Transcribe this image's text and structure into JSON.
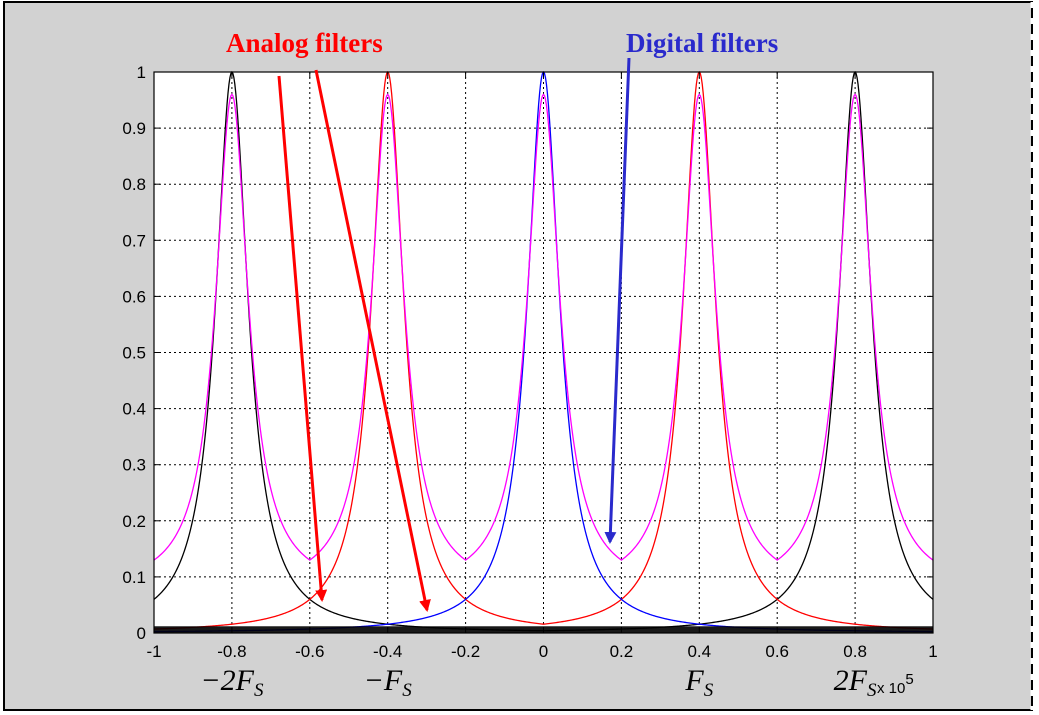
{
  "chart_data": {
    "type": "line",
    "xlim": [
      -1,
      1
    ],
    "ylim": [
      0,
      1
    ],
    "x_ticks": [
      "-1",
      "-0.8",
      "-0.6",
      "-0.4",
      "-0.2",
      "0",
      "0.2",
      "0.4",
      "0.6",
      "0.8",
      "1"
    ],
    "y_ticks": [
      "0",
      "0.1",
      "0.2",
      "0.3",
      "0.4",
      "0.5",
      "0.6",
      "0.7",
      "0.8",
      "0.9",
      "1"
    ],
    "x_exponent": "x 10",
    "x_exponent_power": "5",
    "grid": true,
    "series": [
      {
        "color": "#000000",
        "peak_x": [
          -0.8,
          0.8
        ],
        "peak_value": 1.0,
        "values_at": {
          "x": [
            -0.6,
            -0.4,
            0.0
          ],
          "y": [
            0.06,
            0.018,
            0.008
          ]
        }
      },
      {
        "color": "#ff0000",
        "peak_x": [
          -0.4,
          0.4
        ],
        "peak_value": 1.0,
        "values_at": {
          "x": [
            -0.6,
            -0.2,
            0.0,
            0.2
          ],
          "y": [
            0.06,
            0.06,
            0.018,
            0.06
          ]
        }
      },
      {
        "color": "#0000ff",
        "peak_x": [
          0.0
        ],
        "peak_value": 1.0,
        "values_at": {
          "x": [
            -0.2,
            0.2,
            0.4
          ],
          "y": [
            0.06,
            0.06,
            0.018
          ]
        }
      },
      {
        "color": "#ff00ff",
        "peak_x": [
          -0.8,
          -0.4,
          0.0,
          0.4,
          0.8
        ],
        "peak_value": 0.96,
        "values_at": {
          "x": [
            -0.6,
            -0.2,
            0.2,
            0.6
          ],
          "y": [
            0.13,
            0.13,
            0.13,
            0.13
          ]
        }
      }
    ],
    "annotations": [
      {
        "text": "Analog filters",
        "color": "#ff0000"
      },
      {
        "text": "Digital filters",
        "color": "#2a2acc"
      }
    ],
    "sampling_labels": [
      {
        "text": "−2F",
        "subscript": "S",
        "x": -0.8
      },
      {
        "text": "−F",
        "subscript": "S",
        "x": -0.4
      },
      {
        "text": "F",
        "subscript": "S",
        "x": 0.4
      },
      {
        "text": "2F",
        "subscript": "S",
        "x": 0.8
      }
    ]
  }
}
